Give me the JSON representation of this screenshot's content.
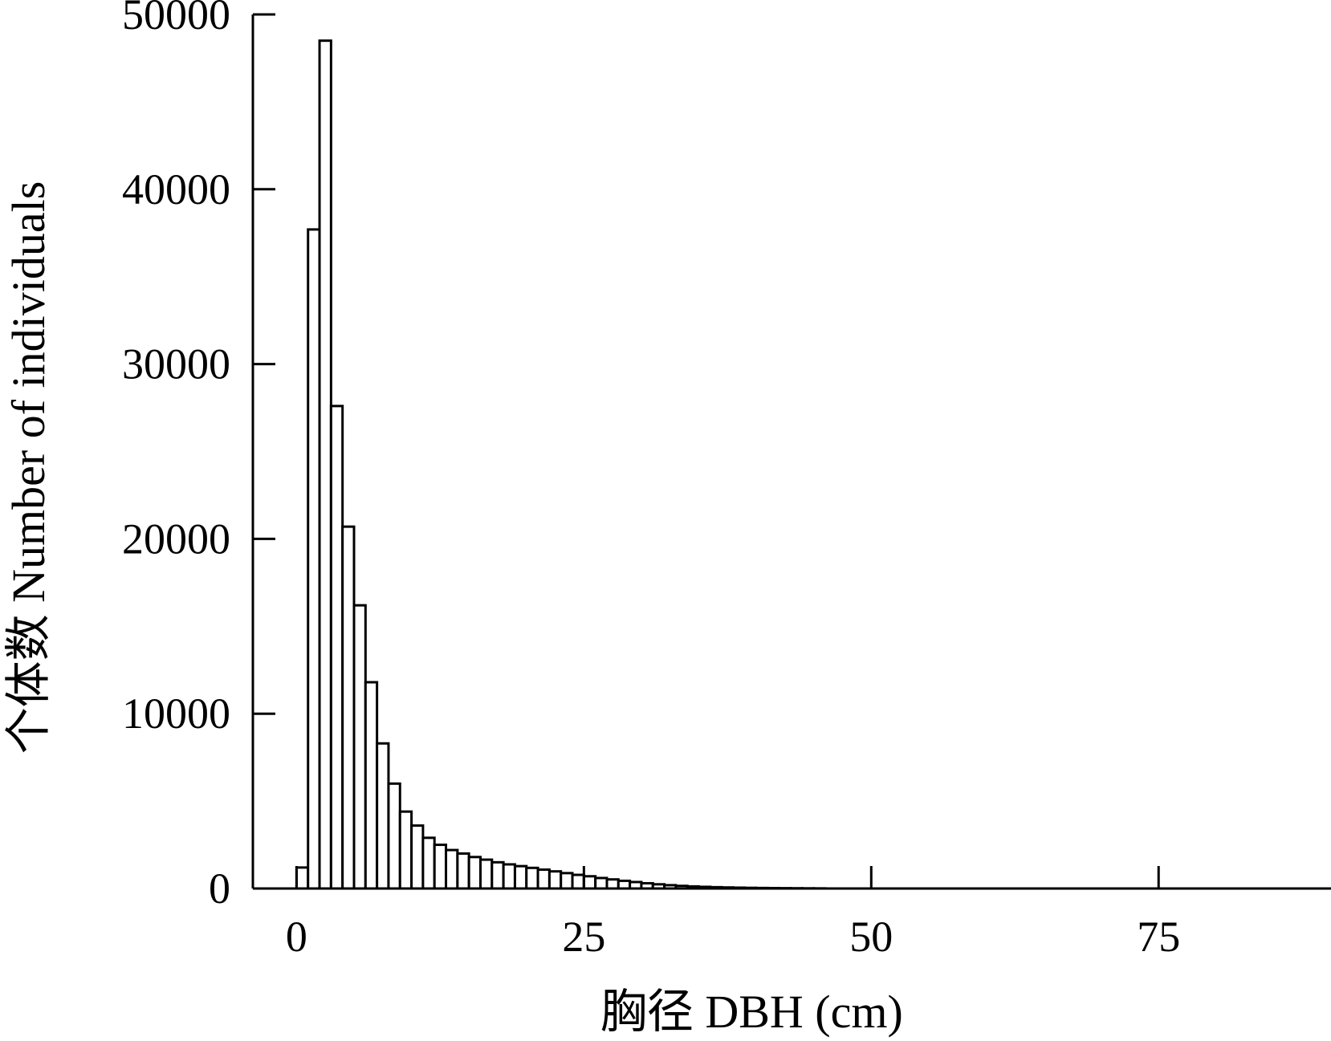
{
  "chart_data": {
    "type": "bar",
    "title": "",
    "xlabel": "胸径 DBH (cm)",
    "ylabel": "个体数 Number of individuals",
    "xlim": [
      -3.8,
      90
    ],
    "ylim": [
      0,
      50000
    ],
    "x_ticks": [
      0,
      25,
      50,
      75
    ],
    "x_tick_labels": [
      "0",
      "25",
      "50",
      "75"
    ],
    "y_ticks": [
      0,
      10000,
      20000,
      30000,
      40000,
      50000
    ],
    "y_tick_labels": [
      "0",
      "10000",
      "20000",
      "30000",
      "40000",
      "50000"
    ],
    "bin_width": 1,
    "bins_start": [
      0,
      1,
      2,
      3,
      4,
      5,
      6,
      7,
      8,
      9,
      10,
      11,
      12,
      13,
      14,
      15,
      16,
      17,
      18,
      19,
      20,
      21,
      22,
      23,
      24,
      25,
      26,
      27,
      28,
      29,
      30,
      31,
      32,
      33,
      34,
      35,
      36,
      37,
      38,
      39,
      40,
      41,
      42,
      43,
      44,
      45
    ],
    "values": [
      1200,
      37700,
      48500,
      27600,
      20700,
      16200,
      11800,
      8300,
      6000,
      4400,
      3600,
      2900,
      2500,
      2200,
      2000,
      1800,
      1650,
      1500,
      1380,
      1280,
      1180,
      1080,
      980,
      880,
      780,
      700,
      600,
      520,
      440,
      370,
      300,
      240,
      190,
      150,
      120,
      95,
      75,
      60,
      48,
      38,
      30,
      24,
      18,
      14,
      10,
      7
    ],
    "grid": false,
    "legend": "none"
  }
}
